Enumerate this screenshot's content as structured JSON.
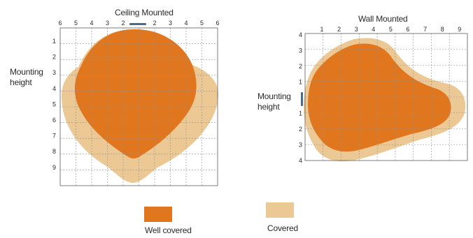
{
  "colors": {
    "well_covered": "#e0771f",
    "covered": "#ecc994",
    "grid": "#8f8f8f",
    "grid_border": "#6f6f6f",
    "marker": "#4a6a8a"
  },
  "ceiling": {
    "title": "Ceiling Mounted",
    "top_ticks": [
      "6",
      "5",
      "4",
      "3",
      "2",
      "",
      "2",
      "3",
      "4",
      "5",
      "6"
    ],
    "left_ticks": [
      "1",
      "2",
      "3",
      "4",
      "5",
      "6",
      "7",
      "8",
      "9"
    ],
    "axis_label": [
      "Mounting",
      "height"
    ]
  },
  "wall": {
    "title": "Wall Mounted",
    "top_ticks": [
      "1",
      "2",
      "3",
      "4",
      "5",
      "6",
      "7",
      "8",
      "9"
    ],
    "left_ticks": [
      "4",
      "3",
      "2",
      "1",
      "",
      "1",
      "2",
      "3",
      "4"
    ],
    "axis_label": [
      "Mounting",
      "height"
    ]
  },
  "legend": {
    "well_covered_label": "Well covered",
    "covered_label": "Covered"
  }
}
